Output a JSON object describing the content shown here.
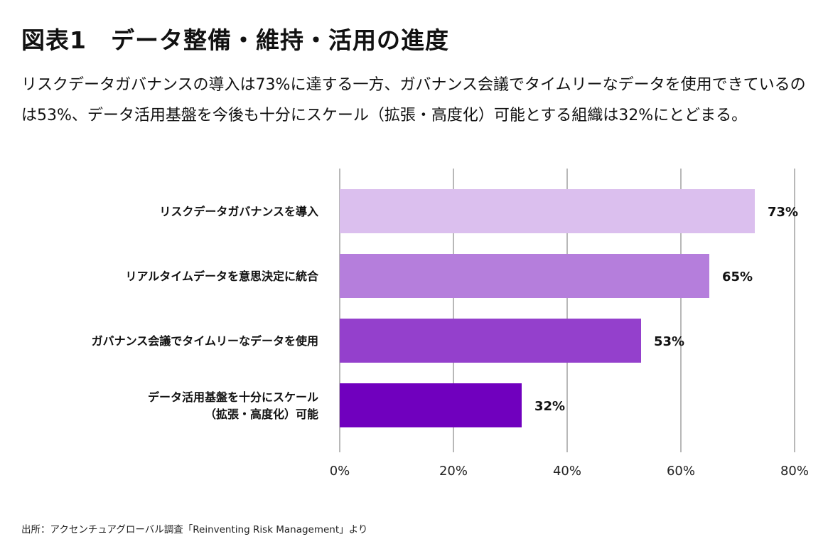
{
  "header": {
    "title": "図表1　データ整備・維持・活用の進度",
    "subtitle": "リスクデータガバナンスの導入は73%に達する一方、ガバナンス会議でタイムリーなデータを使用できているのは53%、データ活用基盤を今後も十分にスケール（拡張・高度化）可能とする組織は32%にとどまる。"
  },
  "source": "出所：アクセンチュアグローバル調査「Reinventing Risk Management」より",
  "chart_data": {
    "type": "bar",
    "orientation": "horizontal",
    "title": "図表1　データ整備・維持・活用の進度",
    "xlabel": "",
    "ylabel": "",
    "xlim": [
      0,
      80
    ],
    "xticks": [
      0,
      20,
      40,
      60,
      80
    ],
    "xtick_labels": [
      "0%",
      "20%",
      "40%",
      "60%",
      "80%"
    ],
    "grid": "vertical",
    "categories": [
      [
        "リスクデータガバナンスを導入"
      ],
      [
        "リアルタイムデータを意思決定に統合"
      ],
      [
        "ガバナンス会議でタイムリーなデータを使用"
      ],
      [
        "データ活用基盤を十分にスケール",
        "（拡張・高度化）可能"
      ]
    ],
    "values": [
      73,
      65,
      53,
      32
    ],
    "value_labels": [
      "73%",
      "65%",
      "53%",
      "32%"
    ],
    "colors": [
      "#dbbfee",
      "#b57edc",
      "#9440cc",
      "#7000be"
    ],
    "gridline_color": "#888888"
  }
}
